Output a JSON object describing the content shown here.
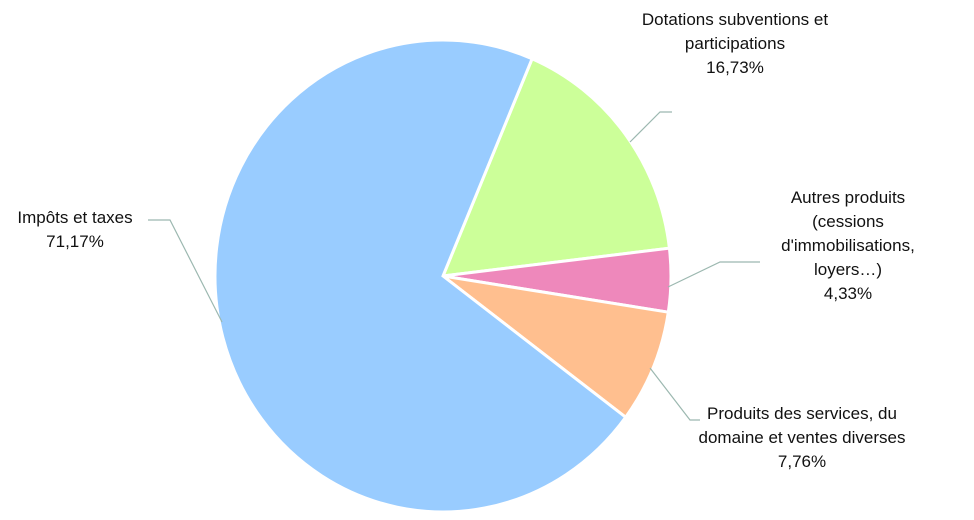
{
  "chart_data": {
    "type": "pie",
    "categories": [
      "Dotations subventions et participations",
      "Autres produits (cessions d'immobilisations, loyers…)",
      "Produits des services, du domaine et ventes diverses",
      "Impôts et taxes"
    ],
    "values": [
      16.73,
      4.33,
      7.76,
      71.17
    ],
    "value_labels": [
      "16,73%",
      "4,33%",
      "7,76%",
      "71,17%"
    ],
    "colors": [
      "#ccff99",
      "#ee88bb",
      "#ffbf8f",
      "#99ccff"
    ]
  }
}
